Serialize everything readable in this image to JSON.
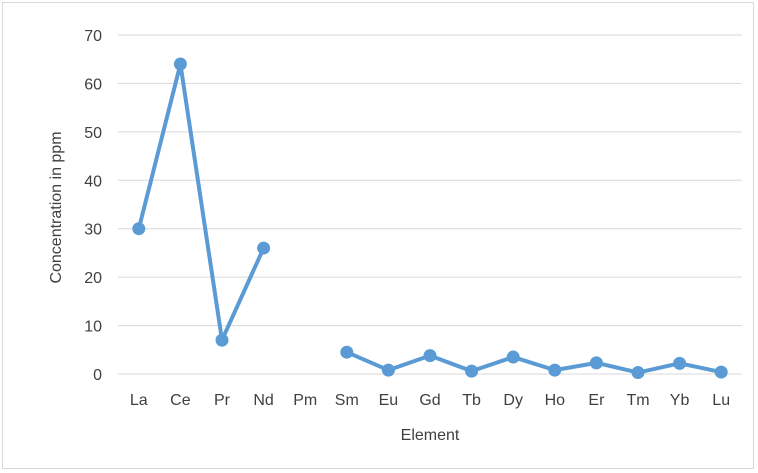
{
  "chart_data": {
    "type": "line",
    "title": "",
    "xlabel": "Element",
    "ylabel": "Concentration in ppm",
    "categories": [
      "La",
      "Ce",
      "Pr",
      "Nd",
      "Pm",
      "Sm",
      "Eu",
      "Gd",
      "Tb",
      "Dy",
      "Ho",
      "Er",
      "Tm",
      "Yb",
      "Lu"
    ],
    "series": [
      {
        "values": [
          30,
          64,
          7,
          26,
          null,
          4.5,
          0.8,
          3.8,
          0.6,
          3.5,
          0.8,
          2.3,
          0.3,
          2.2,
          0.4
        ],
        "color": "#5b9bd5"
      }
    ],
    "yticks": [
      0,
      10,
      20,
      30,
      40,
      50,
      60,
      70
    ],
    "ylim": [
      0,
      70
    ],
    "grid": true,
    "legend": "none"
  }
}
